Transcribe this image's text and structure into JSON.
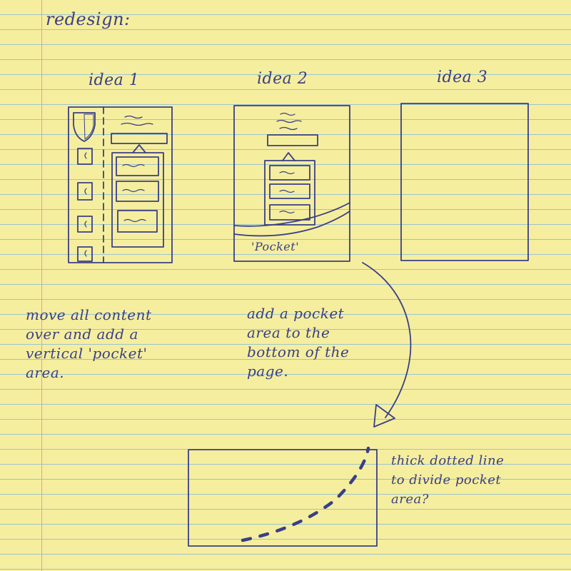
{
  "heading": "redesign:",
  "ideas": [
    {
      "label": "idea 1"
    },
    {
      "label": "idea 2",
      "pocket_label": "'Pocket'"
    },
    {
      "label": "idea 3"
    }
  ],
  "notes": {
    "idea1": [
      "move all content",
      "over and add a",
      "vertical 'pocket'",
      "area."
    ],
    "idea2": [
      "add a pocket",
      "area to the",
      "bottom of the",
      "page."
    ],
    "proposal": [
      "thick dotted line",
      "to divide pocket",
      "area?"
    ]
  },
  "colors": {
    "paper": "#f5ee9e",
    "ink": "#3b3f86",
    "rule_lines": "#9ec3cc",
    "margin_line": "#e0a0a0"
  }
}
